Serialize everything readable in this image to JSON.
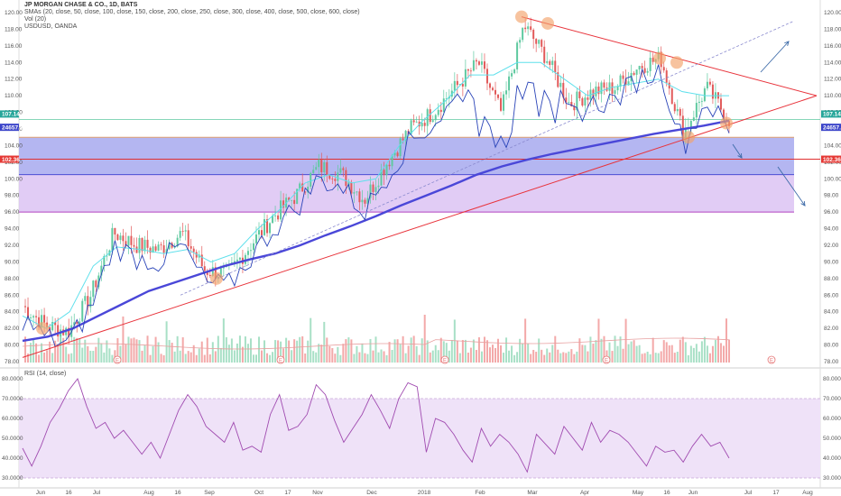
{
  "header": {
    "title": "JP MORGAN CHASE & CO., 1D, BATS",
    "sma_label": "SMAs (20, close, 50, close, 100, close, 150, close, 200, close, 250, close, 300, close, 400, close, 500, close, 600, close)",
    "vol_label": "Vol (20)",
    "usd_label": "USDUSD, OANDA"
  },
  "rsi": {
    "label": "RSI (14, close)"
  },
  "colors": {
    "up": "#5fc9a0",
    "down": "#e25a5a",
    "sma20": "#5fe0ec",
    "sma200": "#4a47d8",
    "usd": "#2a44b8",
    "trend_red": "#e8333b",
    "rsi_line": "#a04bb0",
    "zone_blue": "#a7a9ef",
    "zone_violet": "#dcc3f3"
  },
  "chart_data": [
    {
      "type": "candlestick",
      "title": "JP MORGAN CHASE & CO., 1D, BATS",
      "ylim": [
        78,
        120
      ],
      "y_ticks": [
        "120.00",
        "118.00",
        "116.00",
        "114.00",
        "112.00",
        "110.00",
        "108.00",
        "106.00",
        "104.00",
        "102.00",
        "100.00",
        "98.00",
        "96.00",
        "94.00",
        "92.00",
        "90.00",
        "88.00",
        "86.00",
        "84.00",
        "82.00",
        "80.00",
        "78.00"
      ],
      "x_ticks": [
        "Jun",
        "16",
        "Jul",
        "Aug",
        "16",
        "Sep",
        "Oct",
        "17",
        "Nov",
        "Dec",
        "2018",
        "Feb",
        "Mar",
        "Apr",
        "May",
        "16",
        "Jun",
        "Jul",
        "17",
        "Aug"
      ],
      "last_price_label": "107.14",
      "usd_value_label": "24657.8",
      "red_level_label": "102.36",
      "earnings_marker": "E",
      "close_path": [
        [
          "Jun",
          84.7
        ],
        [
          "Jun",
          82.4
        ],
        [
          "16",
          81.6
        ],
        [
          "16",
          86.0
        ],
        [
          "Jul",
          93.5
        ],
        [
          "Jul",
          92.0
        ],
        [
          "Aug",
          91.5
        ],
        [
          "Aug",
          93.5
        ],
        [
          "16",
          89.0
        ],
        [
          "Sep",
          88.5
        ],
        [
          "Sep",
          92.0
        ],
        [
          "Oct",
          95.5
        ],
        [
          "Oct",
          98.0
        ],
        [
          "17",
          101.5
        ],
        [
          "Nov",
          100.5
        ],
        [
          "Nov",
          97.5
        ],
        [
          "Dec",
          102.0
        ],
        [
          "Dec",
          106.0
        ],
        [
          "2018",
          108.0
        ],
        [
          "2018",
          111.0
        ],
        [
          "Feb",
          114.0
        ],
        [
          "Feb",
          108.0
        ],
        [
          "Mar",
          118.5
        ],
        [
          "Mar",
          114.5
        ],
        [
          "Apr",
          109.0
        ],
        [
          "Apr",
          110.5
        ],
        [
          "May",
          111.0
        ],
        [
          "May",
          113.5
        ],
        [
          "16",
          114.5
        ],
        [
          "Jun",
          105.5
        ],
        [
          "Jun",
          111.0
        ],
        [
          "Jun",
          107.14
        ]
      ],
      "series": [
        {
          "name": "SMA 20",
          "values": [
            83.5,
            82.0,
            84.0,
            89.5,
            91.8,
            91.5,
            91.0,
            91.5,
            90.0,
            91.0,
            94.0,
            96.5,
            99.5,
            100.5,
            99.5,
            100.0,
            104.0,
            107.0,
            109.5,
            112.5,
            112.5,
            114.0,
            114.0,
            112.0,
            110.0,
            111.0,
            111.5,
            112.0,
            110.5,
            110.0,
            110.0
          ]
        },
        {
          "name": "SMA 200",
          "values": [
            80.5,
            81.0,
            82.0,
            83.5,
            85.0,
            86.5,
            87.5,
            88.5,
            89.5,
            90.3,
            91.0,
            92.0,
            93.2,
            94.3,
            95.5,
            96.8,
            98.0,
            99.2,
            100.5,
            101.5,
            102.3,
            103.0,
            103.6,
            104.2,
            104.8,
            105.4,
            105.9,
            106.4,
            107.0
          ]
        }
      ],
      "annotations": {
        "zones": [
          {
            "name": "blue-zone",
            "from": 100.5,
            "to": 105.0
          },
          {
            "name": "violet-zone",
            "from": 96.0,
            "to": 100.5
          }
        ],
        "levels": [
          102.36,
          105.0,
          96.0
        ],
        "trendlines": [
          "rising-support",
          "falling-resistance",
          "dashed-channel"
        ]
      }
    },
    {
      "type": "line",
      "title": "RSI (14, close)",
      "ylim": [
        30,
        80
      ],
      "y_ticks": [
        "80.0000",
        "70.0000",
        "60.0000",
        "50.0000",
        "40.0000",
        "30.0000"
      ],
      "overbought": 70,
      "oversold": 30,
      "values": [
        45,
        36,
        46,
        58,
        65,
        74,
        80,
        66,
        55,
        58,
        50,
        54,
        48,
        42,
        48,
        40,
        52,
        64,
        72,
        66,
        56,
        52,
        48,
        58,
        44,
        46,
        43,
        62,
        72,
        54,
        56,
        62,
        77,
        72,
        59,
        48,
        55,
        62,
        72,
        64,
        55,
        70,
        78,
        76,
        43,
        60,
        58,
        52,
        44,
        38,
        55,
        46,
        52,
        48,
        42,
        33,
        52,
        47,
        42,
        56,
        50,
        44,
        58,
        48,
        54,
        52,
        48,
        42,
        36,
        46,
        43,
        44,
        38,
        46,
        52,
        46,
        48,
        40
      ]
    }
  ]
}
